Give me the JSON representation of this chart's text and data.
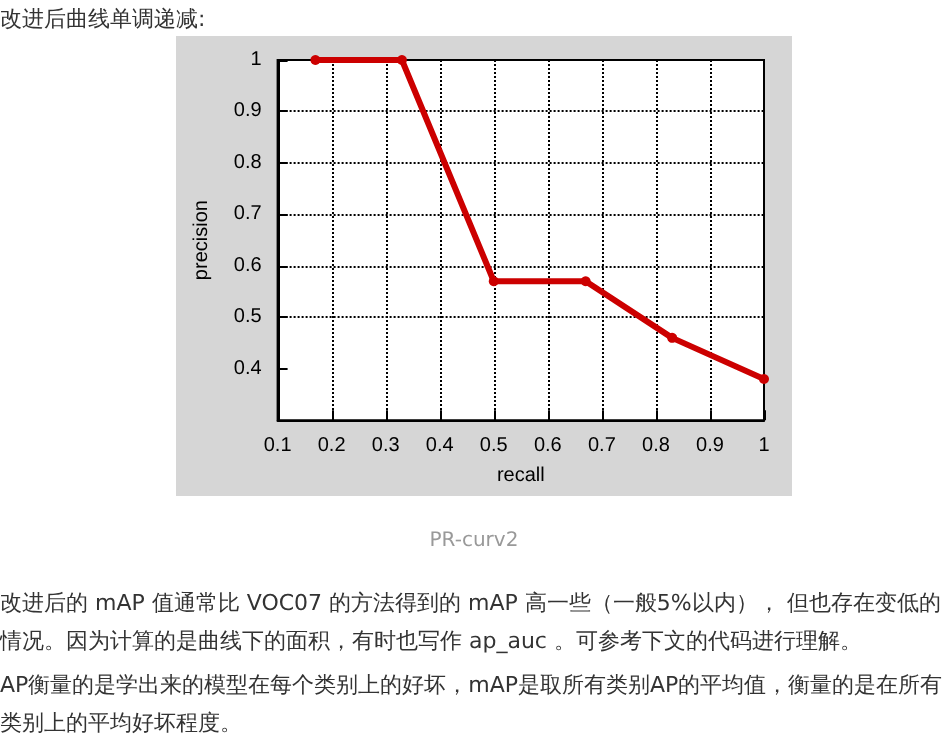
{
  "chart_data": {
    "type": "line",
    "title": "改进后曲线单调递减:",
    "xlabel": "recall",
    "ylabel": "precision",
    "x": [
      0.17,
      0.33,
      0.5,
      0.67,
      0.83,
      1
    ],
    "series": [
      {
        "color": "#cc0000",
        "values": [
          1,
          1,
          0.57,
          0.57,
          0.46,
          0.38
        ]
      }
    ],
    "xlim": [
      0.1,
      1
    ],
    "xticks": [
      0.1,
      0.2,
      0.3,
      0.4,
      0.5,
      0.6,
      0.7,
      0.8,
      0.9,
      1
    ],
    "ylim": [
      0.3,
      1
    ],
    "yticks": [
      0.4,
      0.5,
      0.6,
      0.7,
      0.8,
      0.9,
      1
    ],
    "grid": true,
    "marker": "circle",
    "line_style": "solid",
    "annotations": [
      "PR-curv2",
      "改进后的 mAP 值通常比 VOC07 的方法得到的 mAP 高一些（一般5%以内）， 但也存在变低的情况。因为计算的是曲线下的面积，有时也写作 ap_auc 。可参考下文的代码进行理解。",
      "AP衡量的是学出来的模型在每个类别上的好坏，mAP是取所有类别AP的平均值，衡量的是在所有类别上的平均好坏程度。"
    ]
  }
}
